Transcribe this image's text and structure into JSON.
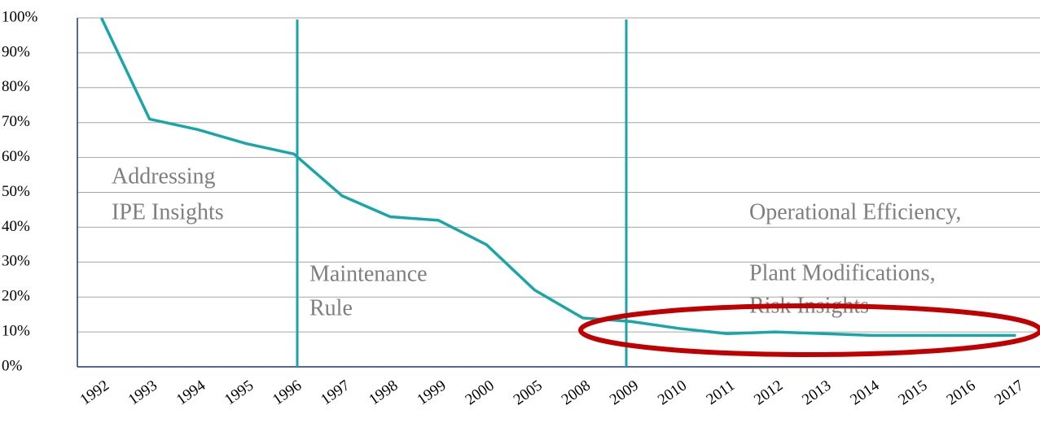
{
  "chart_data": {
    "type": "line",
    "categories": [
      "1992",
      "1993",
      "1994",
      "1995",
      "1996",
      "1997",
      "1998",
      "1999",
      "2000",
      "2005",
      "2008",
      "2009",
      "2010",
      "2011",
      "2012",
      "2013",
      "2014",
      "2015",
      "2016",
      "2017"
    ],
    "series": [
      {
        "color": "#1aa6a8",
        "values": [
          100,
          71,
          68,
          64,
          61,
          49,
          43,
          42,
          35,
          22,
          14,
          13,
          11,
          9.5,
          10,
          9.5,
          9,
          9,
          9,
          9
        ]
      }
    ],
    "ylim": [
      0,
      100
    ],
    "yticks": [
      {
        "value": 0,
        "label": "0%"
      },
      {
        "value": 10,
        "label": "10%"
      },
      {
        "value": 20,
        "label": "20%"
      },
      {
        "value": 30,
        "label": "30%"
      },
      {
        "value": 40,
        "label": "40%"
      },
      {
        "value": 50,
        "label": "50%"
      },
      {
        "value": 60,
        "label": "60%"
      },
      {
        "value": 70,
        "label": "70%"
      },
      {
        "value": 80,
        "label": "80%"
      },
      {
        "value": 90,
        "label": "90%"
      },
      {
        "value": 100,
        "label": "100%"
      }
    ],
    "grid": true,
    "annotations": [
      "Addressing",
      "IPE Insights",
      "Maintenance",
      "Rule",
      "Operational Efficiency,",
      "Plant  Modifications,",
      "Risk Insights"
    ]
  }
}
